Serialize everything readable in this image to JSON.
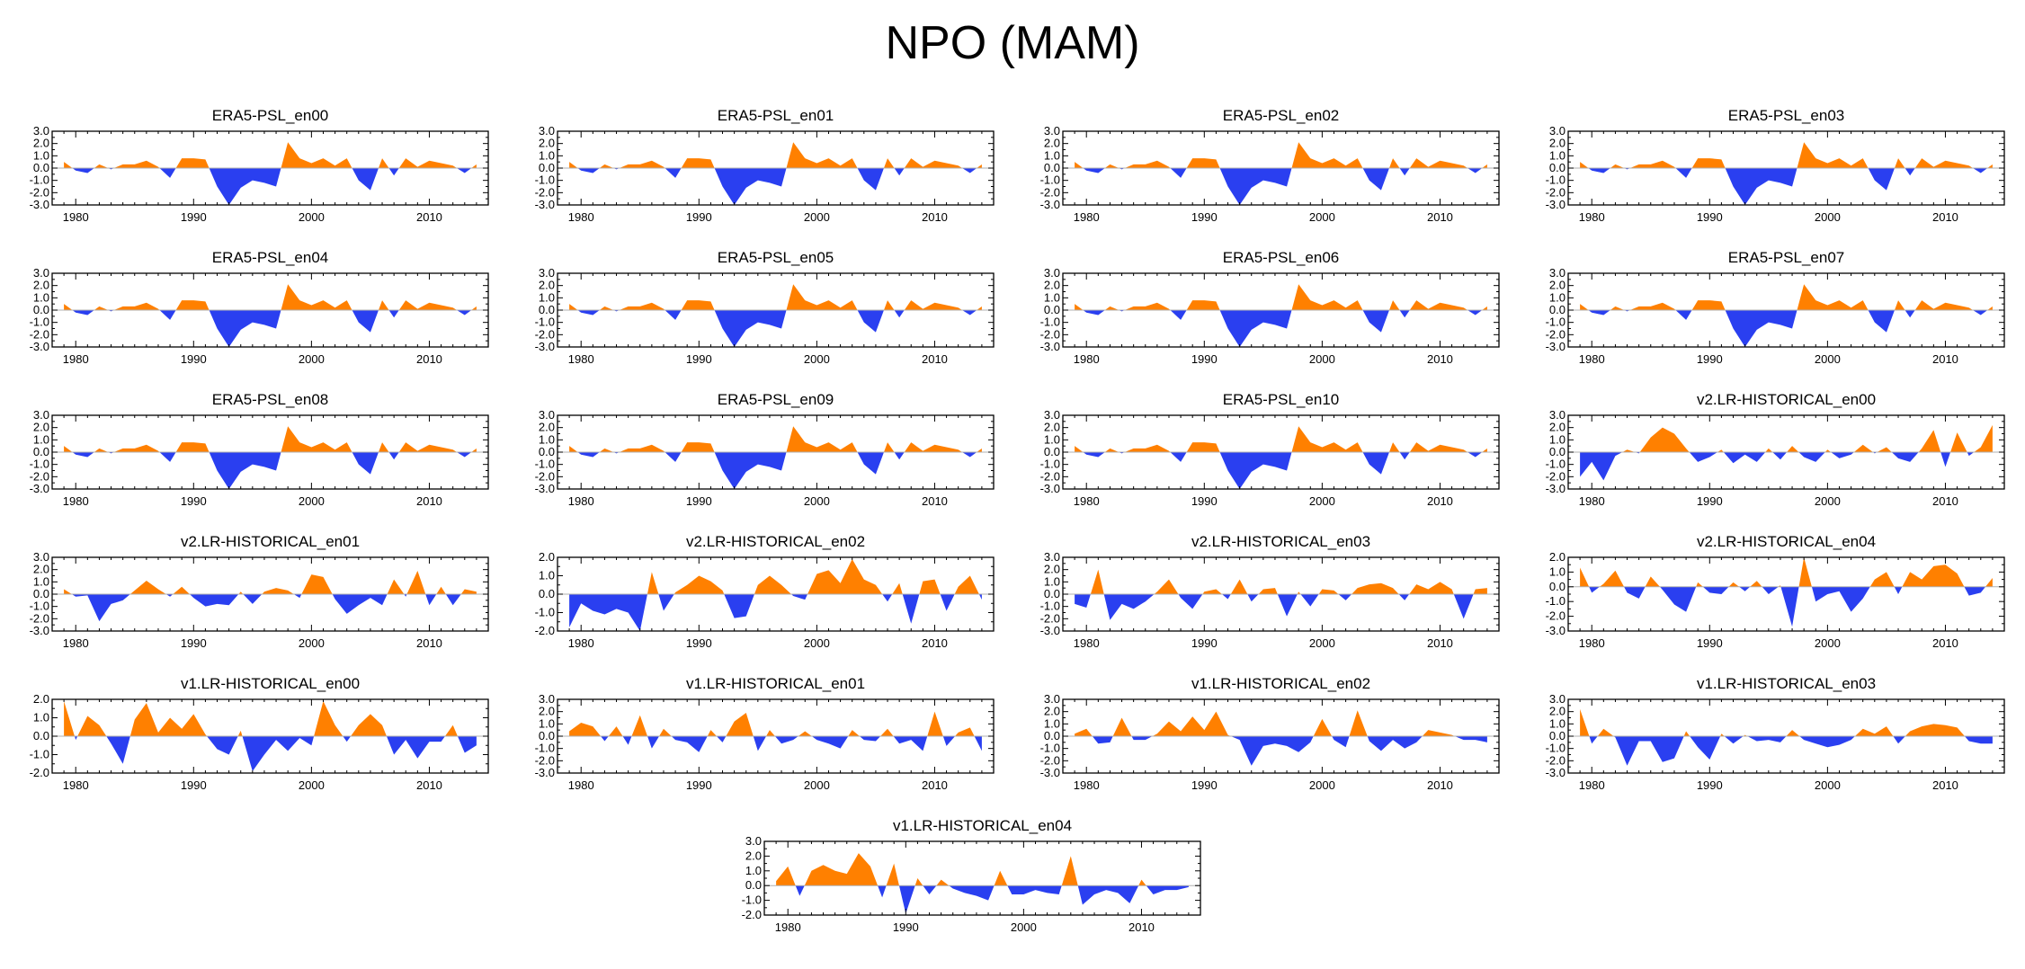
{
  "title": "NPO (MAM)",
  "colors": {
    "positive": "#ff8000",
    "negative": "#2a3ff0",
    "axis": "#000000",
    "zero_line": "#b0b0b0"
  },
  "chart_data": [
    {
      "type": "area",
      "title": "ERA5-PSL_en00",
      "x_start": 1979,
      "x_end": 2014,
      "xticks": [
        1980,
        1990,
        2000,
        2010
      ],
      "yticks": [
        "3.0",
        "2.0",
        "1.0",
        "0.0",
        "-1.0",
        "-2.0",
        "-3.0"
      ],
      "ylim": [
        -3,
        3
      ],
      "values": [
        0.5,
        -0.2,
        -0.4,
        0.3,
        -0.1,
        0.3,
        0.3,
        0.6,
        0.1,
        -0.8,
        0.8,
        0.8,
        0.7,
        -1.5,
        -3.0,
        -1.6,
        -1.0,
        -1.2,
        -1.5,
        2.1,
        0.8,
        0.4,
        0.8,
        0.2,
        0.8,
        -1.0,
        -1.8,
        0.8,
        -0.6,
        0.8,
        0.1,
        0.6,
        0.4,
        0.2,
        -0.4,
        0.3
      ]
    },
    {
      "type": "area",
      "title": "ERA5-PSL_en01",
      "x_start": 1979,
      "x_end": 2014,
      "xticks": [
        1980,
        1990,
        2000,
        2010
      ],
      "yticks": [
        "3.0",
        "2.0",
        "1.0",
        "0.0",
        "-1.0",
        "-2.0",
        "-3.0"
      ],
      "ylim": [
        -3,
        3
      ],
      "values": [
        0.5,
        -0.2,
        -0.4,
        0.3,
        -0.1,
        0.3,
        0.3,
        0.6,
        0.1,
        -0.8,
        0.8,
        0.8,
        0.7,
        -1.5,
        -3.0,
        -1.6,
        -1.0,
        -1.2,
        -1.5,
        2.1,
        0.8,
        0.4,
        0.8,
        0.2,
        0.8,
        -1.0,
        -1.8,
        0.8,
        -0.6,
        0.8,
        0.1,
        0.6,
        0.4,
        0.2,
        -0.4,
        0.3
      ]
    },
    {
      "type": "area",
      "title": "ERA5-PSL_en02",
      "x_start": 1979,
      "x_end": 2014,
      "xticks": [
        1980,
        1990,
        2000,
        2010
      ],
      "yticks": [
        "3.0",
        "2.0",
        "1.0",
        "0.0",
        "-1.0",
        "-2.0",
        "-3.0"
      ],
      "ylim": [
        -3,
        3
      ],
      "values": [
        0.5,
        -0.2,
        -0.4,
        0.3,
        -0.1,
        0.3,
        0.3,
        0.6,
        0.1,
        -0.8,
        0.8,
        0.8,
        0.7,
        -1.5,
        -3.0,
        -1.6,
        -1.0,
        -1.2,
        -1.5,
        2.1,
        0.8,
        0.4,
        0.8,
        0.2,
        0.8,
        -1.0,
        -1.8,
        0.8,
        -0.6,
        0.8,
        0.1,
        0.6,
        0.4,
        0.2,
        -0.4,
        0.3
      ]
    },
    {
      "type": "area",
      "title": "ERA5-PSL_en03",
      "x_start": 1979,
      "x_end": 2014,
      "xticks": [
        1980,
        1990,
        2000,
        2010
      ],
      "yticks": [
        "3.0",
        "2.0",
        "1.0",
        "0.0",
        "-1.0",
        "-2.0",
        "-3.0"
      ],
      "ylim": [
        -3,
        3
      ],
      "values": [
        0.5,
        -0.2,
        -0.4,
        0.3,
        -0.1,
        0.3,
        0.3,
        0.6,
        0.1,
        -0.8,
        0.8,
        0.8,
        0.7,
        -1.5,
        -3.0,
        -1.6,
        -1.0,
        -1.2,
        -1.5,
        2.1,
        0.8,
        0.4,
        0.8,
        0.2,
        0.8,
        -1.0,
        -1.8,
        0.8,
        -0.6,
        0.8,
        0.1,
        0.6,
        0.4,
        0.2,
        -0.4,
        0.3
      ]
    },
    {
      "type": "area",
      "title": "ERA5-PSL_en04",
      "x_start": 1979,
      "x_end": 2014,
      "xticks": [
        1980,
        1990,
        2000,
        2010
      ],
      "yticks": [
        "3.0",
        "2.0",
        "1.0",
        "0.0",
        "-1.0",
        "-2.0",
        "-3.0"
      ],
      "ylim": [
        -3,
        3
      ],
      "values": [
        0.5,
        -0.2,
        -0.4,
        0.3,
        -0.1,
        0.3,
        0.3,
        0.6,
        0.1,
        -0.8,
        0.8,
        0.8,
        0.7,
        -1.5,
        -3.0,
        -1.6,
        -1.0,
        -1.2,
        -1.5,
        2.1,
        0.8,
        0.4,
        0.8,
        0.2,
        0.8,
        -1.0,
        -1.8,
        0.8,
        -0.6,
        0.8,
        0.1,
        0.6,
        0.4,
        0.2,
        -0.4,
        0.3
      ]
    },
    {
      "type": "area",
      "title": "ERA5-PSL_en05",
      "x_start": 1979,
      "x_end": 2014,
      "xticks": [
        1980,
        1990,
        2000,
        2010
      ],
      "yticks": [
        "3.0",
        "2.0",
        "1.0",
        "0.0",
        "-1.0",
        "-2.0",
        "-3.0"
      ],
      "ylim": [
        -3,
        3
      ],
      "values": [
        0.5,
        -0.2,
        -0.4,
        0.3,
        -0.1,
        0.3,
        0.3,
        0.6,
        0.1,
        -0.8,
        0.8,
        0.8,
        0.7,
        -1.5,
        -3.0,
        -1.6,
        -1.0,
        -1.2,
        -1.5,
        2.1,
        0.8,
        0.4,
        0.8,
        0.2,
        0.8,
        -1.0,
        -1.8,
        0.8,
        -0.6,
        0.8,
        0.1,
        0.6,
        0.4,
        0.2,
        -0.4,
        0.3
      ]
    },
    {
      "type": "area",
      "title": "ERA5-PSL_en06",
      "x_start": 1979,
      "x_end": 2014,
      "xticks": [
        1980,
        1990,
        2000,
        2010
      ],
      "yticks": [
        "3.0",
        "2.0",
        "1.0",
        "0.0",
        "-1.0",
        "-2.0",
        "-3.0"
      ],
      "ylim": [
        -3,
        3
      ],
      "values": [
        0.5,
        -0.2,
        -0.4,
        0.3,
        -0.1,
        0.3,
        0.3,
        0.6,
        0.1,
        -0.8,
        0.8,
        0.8,
        0.7,
        -1.5,
        -3.0,
        -1.6,
        -1.0,
        -1.2,
        -1.5,
        2.1,
        0.8,
        0.4,
        0.8,
        0.2,
        0.8,
        -1.0,
        -1.8,
        0.8,
        -0.6,
        0.8,
        0.1,
        0.6,
        0.4,
        0.2,
        -0.4,
        0.3
      ]
    },
    {
      "type": "area",
      "title": "ERA5-PSL_en07",
      "x_start": 1979,
      "x_end": 2014,
      "xticks": [
        1980,
        1990,
        2000,
        2010
      ],
      "yticks": [
        "3.0",
        "2.0",
        "1.0",
        "0.0",
        "-1.0",
        "-2.0",
        "-3.0"
      ],
      "ylim": [
        -3,
        3
      ],
      "values": [
        0.5,
        -0.2,
        -0.4,
        0.3,
        -0.1,
        0.3,
        0.3,
        0.6,
        0.1,
        -0.8,
        0.8,
        0.8,
        0.7,
        -1.5,
        -3.0,
        -1.6,
        -1.0,
        -1.2,
        -1.5,
        2.1,
        0.8,
        0.4,
        0.8,
        0.2,
        0.8,
        -1.0,
        -1.8,
        0.8,
        -0.6,
        0.8,
        0.1,
        0.6,
        0.4,
        0.2,
        -0.4,
        0.3
      ]
    },
    {
      "type": "area",
      "title": "ERA5-PSL_en08",
      "x_start": 1979,
      "x_end": 2014,
      "xticks": [
        1980,
        1990,
        2000,
        2010
      ],
      "yticks": [
        "3.0",
        "2.0",
        "1.0",
        "0.0",
        "-1.0",
        "-2.0",
        "-3.0"
      ],
      "ylim": [
        -3,
        3
      ],
      "values": [
        0.5,
        -0.2,
        -0.4,
        0.3,
        -0.1,
        0.3,
        0.3,
        0.6,
        0.1,
        -0.8,
        0.8,
        0.8,
        0.7,
        -1.5,
        -3.0,
        -1.6,
        -1.0,
        -1.2,
        -1.5,
        2.1,
        0.8,
        0.4,
        0.8,
        0.2,
        0.8,
        -1.0,
        -1.8,
        0.8,
        -0.6,
        0.8,
        0.1,
        0.6,
        0.4,
        0.2,
        -0.4,
        0.3
      ]
    },
    {
      "type": "area",
      "title": "ERA5-PSL_en09",
      "x_start": 1979,
      "x_end": 2014,
      "xticks": [
        1980,
        1990,
        2000,
        2010
      ],
      "yticks": [
        "3.0",
        "2.0",
        "1.0",
        "0.0",
        "-1.0",
        "-2.0",
        "-3.0"
      ],
      "ylim": [
        -3,
        3
      ],
      "values": [
        0.5,
        -0.2,
        -0.4,
        0.3,
        -0.1,
        0.3,
        0.3,
        0.6,
        0.1,
        -0.8,
        0.8,
        0.8,
        0.7,
        -1.5,
        -3.0,
        -1.6,
        -1.0,
        -1.2,
        -1.5,
        2.1,
        0.8,
        0.4,
        0.8,
        0.2,
        0.8,
        -1.0,
        -1.8,
        0.8,
        -0.6,
        0.8,
        0.1,
        0.6,
        0.4,
        0.2,
        -0.4,
        0.3
      ]
    },
    {
      "type": "area",
      "title": "ERA5-PSL_en10",
      "x_start": 1979,
      "x_end": 2014,
      "xticks": [
        1980,
        1990,
        2000,
        2010
      ],
      "yticks": [
        "3.0",
        "2.0",
        "1.0",
        "0.0",
        "-1.0",
        "-2.0",
        "-3.0"
      ],
      "ylim": [
        -3,
        3
      ],
      "values": [
        0.5,
        -0.2,
        -0.4,
        0.3,
        -0.1,
        0.3,
        0.3,
        0.6,
        0.1,
        -0.8,
        0.8,
        0.8,
        0.7,
        -1.5,
        -3.0,
        -1.6,
        -1.0,
        -1.2,
        -1.5,
        2.1,
        0.8,
        0.4,
        0.8,
        0.2,
        0.8,
        -1.0,
        -1.8,
        0.8,
        -0.6,
        0.8,
        0.1,
        0.6,
        0.4,
        0.2,
        -0.4,
        0.3
      ]
    },
    {
      "type": "area",
      "title": "v2.LR-HISTORICAL_en00",
      "x_start": 1979,
      "x_end": 2014,
      "xticks": [
        1980,
        1990,
        2000,
        2010
      ],
      "yticks": [
        "3.0",
        "2.0",
        "1.0",
        "0.0",
        "-1.0",
        "-2.0",
        "-3.0"
      ],
      "ylim": [
        -3,
        3
      ],
      "values": [
        -2.0,
        -0.8,
        -2.3,
        -0.3,
        0.2,
        -0.1,
        1.2,
        2.0,
        1.5,
        0.3,
        -0.8,
        -0.4,
        0.2,
        -0.9,
        -0.2,
        -0.8,
        0.3,
        -0.6,
        0.5,
        -0.4,
        -0.8,
        0.2,
        -0.5,
        -0.2,
        0.6,
        -0.1,
        0.4,
        -0.5,
        -0.8,
        0.3,
        1.8,
        -1.2,
        1.6,
        -0.3,
        0.4,
        2.2
      ]
    },
    {
      "type": "area",
      "title": "v2.LR-HISTORICAL_en01",
      "x_start": 1979,
      "x_end": 2014,
      "xticks": [
        1980,
        1990,
        2000,
        2010
      ],
      "yticks": [
        "3.0",
        "2.0",
        "1.0",
        "0.0",
        "-1.0",
        "-2.0",
        "-3.0"
      ],
      "ylim": [
        -3,
        3
      ],
      "values": [
        0.4,
        -0.2,
        -0.1,
        -2.2,
        -0.8,
        -0.5,
        0.3,
        1.1,
        0.4,
        -0.2,
        0.6,
        -0.3,
        -1.0,
        -0.8,
        -0.9,
        0.2,
        -0.8,
        0.2,
        0.5,
        0.3,
        -0.3,
        1.6,
        1.4,
        -0.4,
        -1.6,
        -0.9,
        -0.3,
        -0.9,
        1.2,
        -0.2,
        1.9,
        -0.9,
        0.6,
        -0.9,
        0.4,
        0.2
      ]
    },
    {
      "type": "area",
      "title": "v2.LR-HISTORICAL_en02",
      "x_start": 1979,
      "x_end": 2014,
      "xticks": [
        1980,
        1990,
        2000,
        2010
      ],
      "yticks": [
        "2.0",
        "1.0",
        "0.0",
        "-1.0",
        "-2.0"
      ],
      "ylim": [
        -2,
        2
      ],
      "values": [
        -1.8,
        -0.5,
        -0.9,
        -1.1,
        -0.8,
        -1.0,
        -2.0,
        1.2,
        -0.9,
        0.1,
        0.5,
        1.0,
        0.7,
        0.2,
        -1.3,
        -1.2,
        0.5,
        1.0,
        0.5,
        -0.1,
        -0.3,
        1.1,
        1.3,
        0.6,
        1.9,
        0.8,
        0.5,
        -0.4,
        0.6,
        -1.6,
        0.7,
        0.8,
        -0.9,
        0.4,
        1.0,
        -0.3
      ]
    },
    {
      "type": "area",
      "title": "v2.LR-HISTORICAL_en03",
      "x_start": 1979,
      "x_end": 2014,
      "xticks": [
        1980,
        1990,
        2000,
        2010
      ],
      "yticks": [
        "3.0",
        "2.0",
        "1.0",
        "0.0",
        "-1.0",
        "-2.0",
        "-3.0"
      ],
      "ylim": [
        -3,
        3
      ],
      "values": [
        -0.8,
        -1.1,
        2.0,
        -2.1,
        -0.8,
        -1.2,
        -0.6,
        0.2,
        1.2,
        -0.3,
        -1.2,
        0.2,
        0.4,
        -0.4,
        1.2,
        -0.6,
        0.4,
        0.5,
        -1.8,
        0.2,
        -1.0,
        0.4,
        0.3,
        -0.5,
        0.5,
        0.8,
        0.9,
        0.5,
        -0.5,
        0.8,
        0.4,
        1.0,
        0.4,
        -2.0,
        0.4,
        0.5
      ]
    },
    {
      "type": "area",
      "title": "v2.LR-HISTORICAL_en04",
      "x_start": 1979,
      "x_end": 2014,
      "xticks": [
        1980,
        1990,
        2000,
        2010
      ],
      "yticks": [
        "2.0",
        "1.0",
        "0.0",
        "-1.0",
        "-2.0",
        "-3.0"
      ],
      "ylim": [
        -3,
        2
      ],
      "values": [
        1.3,
        -0.4,
        0.2,
        1.1,
        -0.4,
        -0.8,
        0.7,
        -0.2,
        -1.2,
        -1.7,
        0.3,
        -0.4,
        -0.5,
        0.3,
        -0.3,
        0.4,
        -0.5,
        0.1,
        -2.7,
        2.0,
        -1.0,
        -0.5,
        -0.3,
        -1.7,
        -0.8,
        0.5,
        1.0,
        -0.5,
        1.0,
        0.5,
        1.4,
        1.5,
        0.9,
        -0.6,
        -0.4,
        0.6
      ]
    },
    {
      "type": "area",
      "title": "v1.LR-HISTORICAL_en00",
      "x_start": 1979,
      "x_end": 2014,
      "xticks": [
        1980,
        1990,
        2000,
        2010
      ],
      "yticks": [
        "2.0",
        "1.0",
        "0.0",
        "-1.0",
        "-2.0"
      ],
      "ylim": [
        -2,
        2
      ],
      "values": [
        1.9,
        -0.2,
        1.1,
        0.6,
        -0.4,
        -1.5,
        0.9,
        1.8,
        0.2,
        1.0,
        0.4,
        1.2,
        0.1,
        -0.7,
        -1.0,
        0.3,
        -1.9,
        -1.0,
        -0.2,
        -0.8,
        -0.1,
        -0.5,
        1.9,
        0.6,
        -0.3,
        0.6,
        1.2,
        0.6,
        -1.0,
        -0.2,
        -1.2,
        -0.3,
        -0.3,
        0.6,
        -0.9,
        -0.5
      ]
    },
    {
      "type": "area",
      "title": "v1.LR-HISTORICAL_en01",
      "x_start": 1979,
      "x_end": 2014,
      "xticks": [
        1980,
        1990,
        2000,
        2010
      ],
      "yticks": [
        "3.0",
        "2.0",
        "1.0",
        "0.0",
        "-1.0",
        "-2.0",
        "-3.0"
      ],
      "ylim": [
        -3,
        3
      ],
      "values": [
        0.4,
        1.1,
        0.8,
        -0.4,
        0.8,
        -0.7,
        1.7,
        -1.0,
        0.6,
        -0.3,
        -0.5,
        -1.3,
        0.5,
        -0.5,
        1.2,
        1.9,
        -1.2,
        0.5,
        -0.6,
        -0.3,
        0.4,
        -0.3,
        -0.6,
        -1.0,
        0.5,
        -0.3,
        -0.4,
        0.6,
        -0.6,
        -0.3,
        -1.2,
        2.0,
        -0.8,
        0.3,
        0.7,
        -1.2
      ]
    },
    {
      "type": "area",
      "title": "v1.LR-HISTORICAL_en02",
      "x_start": 1979,
      "x_end": 2014,
      "xticks": [
        1980,
        1990,
        2000,
        2010
      ],
      "yticks": [
        "3.0",
        "2.0",
        "1.0",
        "0.0",
        "-1.0",
        "-2.0",
        "-3.0"
      ],
      "ylim": [
        -3,
        3
      ],
      "values": [
        0.2,
        0.6,
        -0.6,
        -0.5,
        1.5,
        -0.3,
        -0.3,
        0.2,
        1.2,
        0.4,
        1.6,
        0.5,
        2.0,
        0.1,
        -0.3,
        -2.4,
        -0.8,
        -0.6,
        -0.8,
        -1.3,
        -0.5,
        1.4,
        -0.3,
        -0.9,
        2.1,
        -0.4,
        -1.2,
        -0.3,
        -1.0,
        -0.5,
        0.5,
        0.3,
        0.1,
        -0.3,
        -0.3,
        -0.5
      ]
    },
    {
      "type": "area",
      "title": "v1.LR-HISTORICAL_en03",
      "x_start": 1979,
      "x_end": 2014,
      "xticks": [
        1980,
        1990,
        2000,
        2010
      ],
      "yticks": [
        "3.0",
        "2.0",
        "1.0",
        "0.0",
        "-1.0",
        "-2.0",
        "-3.0"
      ],
      "ylim": [
        -3,
        3
      ],
      "values": [
        2.2,
        -0.6,
        0.6,
        -0.1,
        -2.4,
        -0.4,
        -0.4,
        -2.1,
        -1.8,
        0.4,
        -0.9,
        -1.9,
        0.2,
        -0.6,
        0.1,
        -0.4,
        -0.3,
        -0.5,
        0.5,
        -0.3,
        -0.6,
        -0.9,
        -0.7,
        -0.3,
        0.6,
        0.2,
        0.8,
        -0.6,
        0.4,
        0.8,
        1.0,
        0.9,
        0.7,
        -0.4,
        -0.6,
        -0.6
      ]
    },
    {
      "type": "area",
      "title": "v1.LR-HISTORICAL_en04",
      "x_start": 1979,
      "x_end": 2014,
      "xticks": [
        1980,
        1990,
        2000,
        2010
      ],
      "yticks": [
        "3.0",
        "2.0",
        "1.0",
        "0.0",
        "-1.0",
        "-2.0"
      ],
      "ylim": [
        -2,
        3
      ],
      "values": [
        0.3,
        1.3,
        -0.7,
        1.0,
        1.4,
        1.0,
        0.8,
        2.2,
        1.3,
        -0.8,
        1.5,
        -1.9,
        0.5,
        -0.6,
        0.4,
        -0.2,
        -0.5,
        -0.7,
        -1.0,
        1.0,
        -0.6,
        -0.6,
        -0.3,
        -0.5,
        -0.6,
        2.0,
        -1.3,
        -0.6,
        -0.3,
        -0.5,
        -1.2,
        0.4,
        -0.6,
        -0.3,
        -0.3,
        -0.1
      ]
    }
  ]
}
